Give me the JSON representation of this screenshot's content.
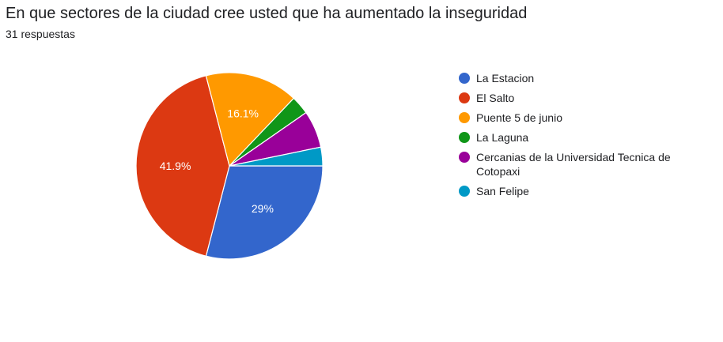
{
  "chart_data": {
    "type": "pie",
    "title": "En que sectores de la ciudad cree usted que ha aumentado la inseguridad",
    "subtitle": "31 respuestas",
    "categories": [
      "La Estacion",
      "El Salto",
      "Puente 5 de junio",
      "La Laguna",
      "Cercanias de la Universidad Tecnica de Cotopaxi",
      "San Felipe"
    ],
    "values": [
      9,
      13,
      5,
      1,
      2,
      1
    ],
    "percent_labels": [
      "29%",
      "41.9%",
      "16.1%",
      "",
      "",
      ""
    ],
    "colors": [
      "#3366cc",
      "#dc3912",
      "#ff9900",
      "#109618",
      "#990099",
      "#0099c6"
    ],
    "legend_position": "right",
    "start_angle_deg": 90,
    "direction": "clockwise"
  }
}
